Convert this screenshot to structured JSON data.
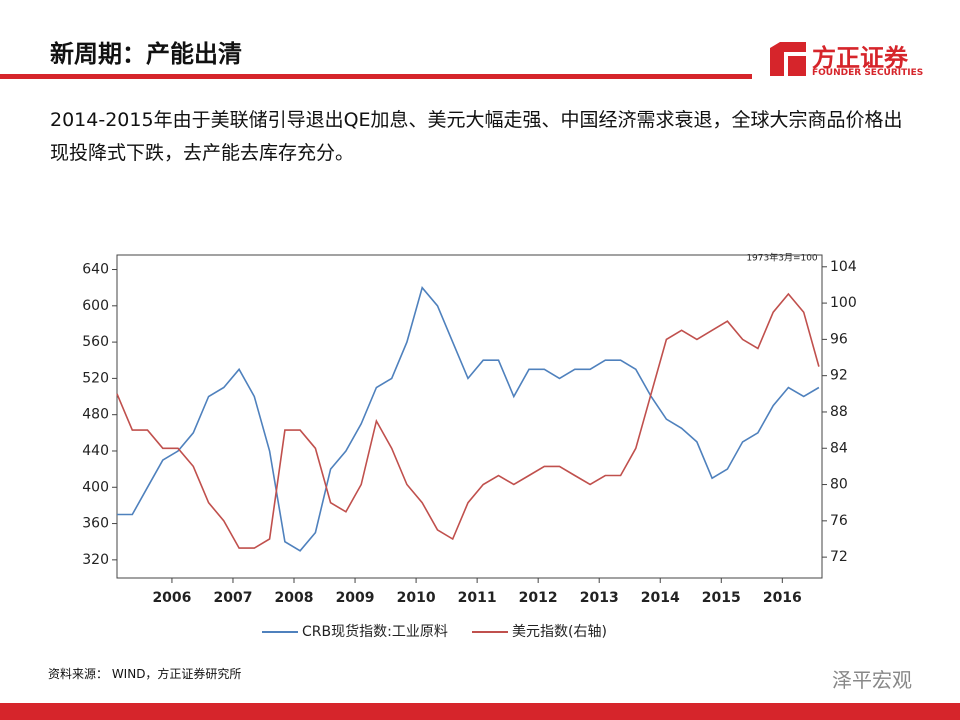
{
  "header": {
    "title": "新周期：产能出清",
    "logo_cn": "方正证券",
    "logo_en": "FOUNDER SECURITIES"
  },
  "body": "2014-2015年由于美联储引导退出QE加息、美元大幅走强、中国经济需求衰退，全球大宗商品价格出现投降式下跌，去产能去库存充分。",
  "chart_data": {
    "type": "line",
    "annotation": "1973年3月=100",
    "x": [
      2005.1,
      2005.35,
      2005.6,
      2005.85,
      2006.1,
      2006.35,
      2006.6,
      2006.85,
      2007.1,
      2007.35,
      2007.6,
      2007.85,
      2008.1,
      2008.35,
      2008.6,
      2008.85,
      2009.1,
      2009.35,
      2009.6,
      2009.85,
      2010.1,
      2010.35,
      2010.6,
      2010.85,
      2011.1,
      2011.35,
      2011.6,
      2011.85,
      2012.1,
      2012.35,
      2012.6,
      2012.85,
      2013.1,
      2013.35,
      2013.6,
      2013.85,
      2014.1,
      2014.35,
      2014.6,
      2014.85,
      2015.1,
      2015.35,
      2015.6,
      2015.85,
      2016.1,
      2016.35,
      2016.6
    ],
    "series": [
      {
        "name": "CRB现货指数:工业原料",
        "color": "#4f81bd",
        "values": [
          370,
          370,
          400,
          430,
          440,
          460,
          500,
          510,
          530,
          500,
          440,
          340,
          330,
          350,
          420,
          440,
          470,
          510,
          520,
          560,
          620,
          600,
          560,
          520,
          540,
          540,
          500,
          530,
          530,
          520,
          530,
          530,
          540,
          540,
          530,
          500,
          475,
          465,
          450,
          410,
          420,
          450,
          460,
          490,
          510,
          500,
          510
        ]
      },
      {
        "name": "美元指数(右轴)",
        "color": "#c0504d",
        "axis": "y2",
        "values": [
          90,
          86,
          86,
          84,
          84,
          82,
          78,
          76,
          73,
          73,
          74,
          86,
          86,
          84,
          78,
          77,
          80,
          87,
          84,
          80,
          78,
          75,
          74,
          78,
          80,
          81,
          80,
          81,
          82,
          82,
          81,
          80,
          81,
          81,
          84,
          90,
          96,
          97,
          96,
          97,
          98,
          96,
          95,
          99,
          101,
          99,
          93
        ]
      }
    ],
    "xlim": [
      2005.1,
      2016.65
    ],
    "xticks": [
      2006,
      2007,
      2008,
      2009,
      2010,
      2011,
      2012,
      2013,
      2014,
      2015,
      2016
    ],
    "ylim": [
      300,
      656
    ],
    "yticks": [
      320,
      360,
      400,
      440,
      480,
      520,
      560,
      600,
      640
    ],
    "y2lim": [
      69.7,
      105.3
    ],
    "y2ticks": [
      72,
      76,
      80,
      84,
      88,
      92,
      96,
      100,
      104
    ],
    "legend": "bottom"
  },
  "source": "资料来源： WIND，方正证券研究所",
  "watermark": "泽平宏观"
}
